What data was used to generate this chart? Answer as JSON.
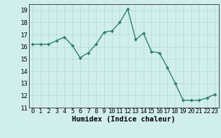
{
  "x": [
    0,
    1,
    2,
    3,
    4,
    5,
    6,
    7,
    8,
    9,
    10,
    11,
    12,
    13,
    14,
    15,
    16,
    17,
    18,
    19,
    20,
    21,
    22,
    23
  ],
  "y": [
    16.2,
    16.2,
    16.2,
    16.5,
    16.8,
    16.1,
    15.1,
    15.5,
    16.2,
    17.2,
    17.3,
    18.0,
    19.1,
    16.6,
    17.1,
    15.6,
    15.5,
    14.3,
    13.0,
    11.6,
    11.6,
    11.6,
    11.8,
    12.1
  ],
  "xlabel": "Humidex (Indice chaleur)",
  "ylim": [
    11,
    19.5
  ],
  "xlim": [
    -0.5,
    23.5
  ],
  "yticks": [
    11,
    12,
    13,
    14,
    15,
    16,
    17,
    18,
    19
  ],
  "xticks": [
    0,
    1,
    2,
    3,
    4,
    5,
    6,
    7,
    8,
    9,
    10,
    11,
    12,
    13,
    14,
    15,
    16,
    17,
    18,
    19,
    20,
    21,
    22,
    23
  ],
  "line_color": "#2e7d6e",
  "marker_color": "#2e7d6e",
  "bg_color": "#d0eeec",
  "grid_color": "#b8dbd9",
  "axis_color": "#444444",
  "marker": "D",
  "marker_size": 2.2,
  "line_width": 1.0,
  "xlabel_fontsize": 7.5,
  "tick_fontsize": 6.5
}
